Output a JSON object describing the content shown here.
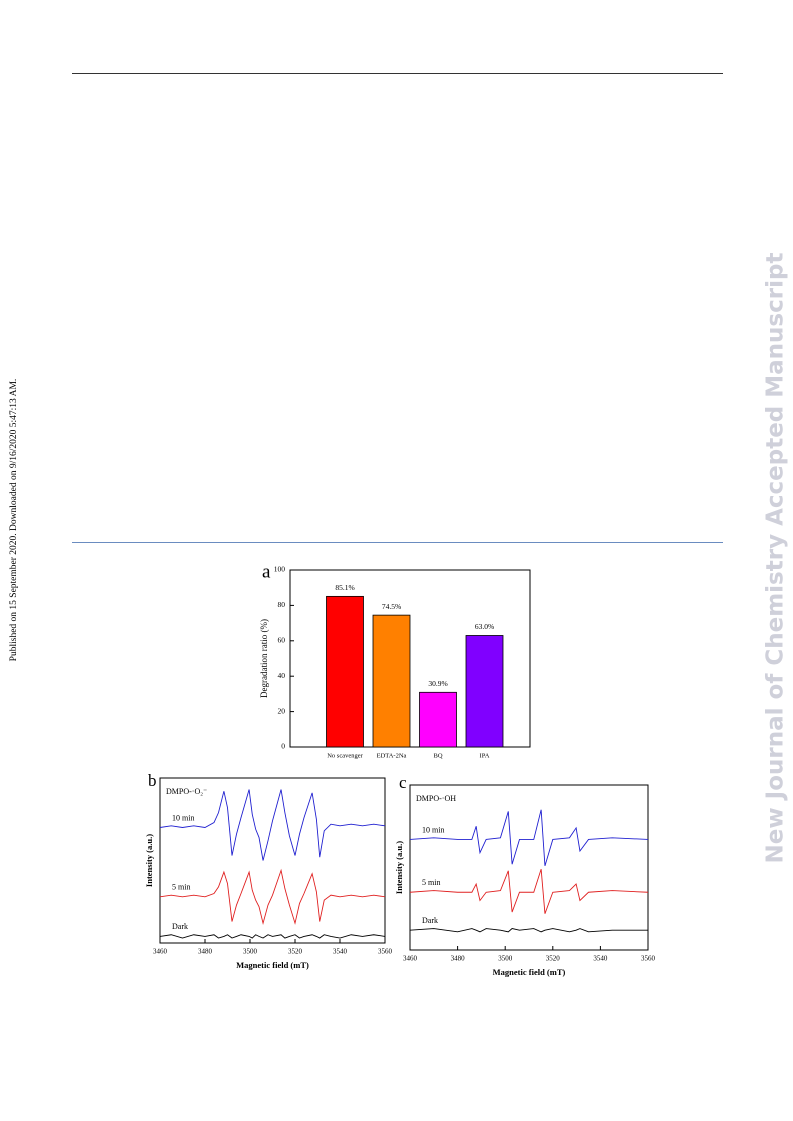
{
  "side_note": "Published on 15 September 2020. Downloaded on 9/16/2020 5:47:13 AM.",
  "watermark": "New Journal of Chemistry Accepted Manuscript",
  "chart_data": [
    {
      "type": "bar",
      "panel": "a",
      "ylabel": "Degradation ratio (%)",
      "categories": [
        "No scavenger",
        "EDTA-2Na",
        "BQ",
        "IPA"
      ],
      "values": [
        85.1,
        74.5,
        30.9,
        63.0
      ],
      "value_labels": [
        "85.1%",
        "74.5%",
        "30.9%",
        "63.0%"
      ],
      "colors": [
        "#ff0000",
        "#ff8000",
        "#ff00ff",
        "#8000ff"
      ],
      "ylim": [
        0,
        100
      ],
      "yticks": [
        0,
        20,
        40,
        60,
        80,
        100
      ]
    },
    {
      "type": "line",
      "panel": "b",
      "annotation": "DMPO-·O₂⁻",
      "xlabel": "Magnetic field (mT)",
      "ylabel": "Intensity (a.u.)",
      "xlim": [
        3460,
        3560
      ],
      "xticks": [
        3460,
        3480,
        3500,
        3520,
        3540,
        3560
      ],
      "ylim": [
        0,
        10
      ],
      "x": [
        3460,
        3465,
        3470,
        3475,
        3480,
        3484,
        3486,
        3488.4,
        3490,
        3492,
        3494,
        3496,
        3499.6,
        3501,
        3502.5,
        3504,
        3505.8,
        3508,
        3510,
        3513.8,
        3515.5,
        3517.5,
        3520,
        3522,
        3524,
        3527.6,
        3529.5,
        3531,
        3533,
        3536,
        3540,
        3545,
        3550,
        3555,
        3560
      ],
      "series": [
        {
          "name": "10 min",
          "color": "#2020d0",
          "values": [
            7.0,
            7.1,
            7.0,
            7.1,
            7.0,
            7.3,
            7.9,
            9.2,
            8.2,
            5.3,
            6.6,
            7.6,
            9.3,
            7.8,
            6.9,
            6.4,
            5.0,
            6.2,
            7.4,
            9.3,
            7.9,
            6.5,
            5.3,
            6.6,
            7.6,
            9.1,
            7.5,
            5.2,
            6.8,
            7.2,
            7.1,
            7.2,
            7.1,
            7.2,
            7.1
          ]
        },
        {
          "name": "5 min",
          "color": "#e02020",
          "values": [
            2.8,
            2.9,
            2.8,
            2.9,
            2.8,
            3.0,
            3.4,
            4.3,
            3.6,
            1.3,
            2.3,
            3.0,
            4.3,
            3.2,
            2.6,
            2.2,
            1.2,
            2.3,
            2.9,
            4.4,
            3.3,
            2.3,
            1.2,
            2.4,
            3.0,
            4.2,
            3.1,
            1.3,
            2.6,
            2.9,
            2.8,
            2.9,
            2.8,
            2.9,
            2.8
          ]
        },
        {
          "name": "Dark",
          "color": "#000000",
          "values": [
            0.4,
            0.5,
            0.3,
            0.5,
            0.4,
            0.5,
            0.3,
            0.4,
            0.5,
            0.3,
            0.4,
            0.5,
            0.4,
            0.3,
            0.5,
            0.4,
            0.3,
            0.5,
            0.4,
            0.5,
            0.3,
            0.4,
            0.5,
            0.3,
            0.4,
            0.5,
            0.4,
            0.3,
            0.5,
            0.4,
            0.3,
            0.5,
            0.4,
            0.5,
            0.4
          ]
        }
      ]
    },
    {
      "type": "line",
      "panel": "c",
      "annotation": "DMPO-·OH",
      "xlabel": "Magnetic field (mT)",
      "ylabel": "Intensity (a.u.)",
      "xlim": [
        3460,
        3560
      ],
      "xticks": [
        3460,
        3480,
        3500,
        3520,
        3540,
        3560
      ],
      "ylim": [
        0,
        10
      ],
      "x": [
        3460,
        3470,
        3480,
        3486,
        3487.8,
        3489.4,
        3492,
        3498,
        3501.3,
        3502.9,
        3506,
        3512,
        3515.1,
        3516.7,
        3520,
        3527,
        3529.8,
        3531.4,
        3535,
        3545,
        3560
      ],
      "series": [
        {
          "name": "10 min",
          "color": "#2020d0",
          "values": [
            6.7,
            6.8,
            6.7,
            6.7,
            7.5,
            5.9,
            6.7,
            6.8,
            8.4,
            5.2,
            6.7,
            6.7,
            8.5,
            5.1,
            6.7,
            6.8,
            7.4,
            6.0,
            6.7,
            6.8,
            6.7
          ]
        },
        {
          "name": "5 min",
          "color": "#e02020",
          "values": [
            3.5,
            3.6,
            3.5,
            3.5,
            4.0,
            3.0,
            3.5,
            3.6,
            4.8,
            2.3,
            3.5,
            3.5,
            4.9,
            2.2,
            3.5,
            3.6,
            4.0,
            3.0,
            3.5,
            3.6,
            3.5
          ]
        },
        {
          "name": "Dark",
          "color": "#000000",
          "values": [
            1.2,
            1.3,
            1.1,
            1.3,
            1.2,
            1.1,
            1.3,
            1.2,
            1.1,
            1.3,
            1.2,
            1.3,
            1.1,
            1.2,
            1.3,
            1.1,
            1.2,
            1.3,
            1.1,
            1.2,
            1.2
          ]
        }
      ]
    }
  ]
}
